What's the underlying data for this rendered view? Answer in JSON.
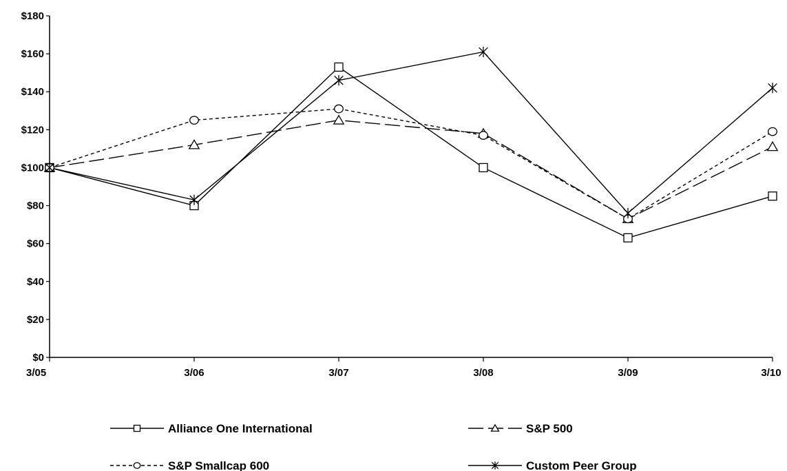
{
  "chart_data": {
    "type": "line",
    "title": "",
    "xlabel": "",
    "ylabel": "",
    "categories": [
      "3/05",
      "3/06",
      "3/07",
      "3/08",
      "3/09",
      "3/10"
    ],
    "y_tick_labels": [
      "$0",
      "$20",
      "$40",
      "$60",
      "$80",
      "$100",
      "$120",
      "$140",
      "$160",
      "$180"
    ],
    "ylim": [
      0,
      180
    ],
    "grid": false,
    "legend_position": "bottom",
    "series": [
      {
        "name": "Alliance One International",
        "marker": "square",
        "dash": "solid",
        "color": "#000000",
        "values": [
          100,
          80,
          153,
          100,
          63,
          85
        ]
      },
      {
        "name": "S&P 500",
        "marker": "triangle",
        "dash": "long-dash",
        "color": "#000000",
        "values": [
          100,
          112,
          125,
          118,
          73,
          111
        ]
      },
      {
        "name": "S&P Smallcap 600",
        "marker": "circle",
        "dash": "short-dash",
        "color": "#000000",
        "values": [
          100,
          125,
          131,
          117,
          73,
          119
        ]
      },
      {
        "name": "Custom Peer Group",
        "marker": "asterisk",
        "dash": "solid",
        "color": "#000000",
        "values": [
          100,
          83,
          146,
          161,
          76,
          142
        ]
      }
    ]
  }
}
